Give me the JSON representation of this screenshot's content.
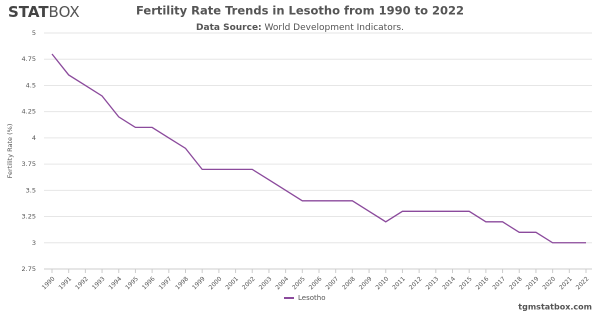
{
  "chart_data": {
    "type": "line",
    "brand_bold": "STAT",
    "brand_light": "BOX",
    "title": "Fertility Rate Trends in Lesotho from 1990 to 2022",
    "source_label": "Data Source:",
    "source": "World Development Indicators.",
    "ylabel": "Fertility Rate (%)",
    "footer": "tgmstatbox.com",
    "x": [
      1990,
      1991,
      1992,
      1993,
      1994,
      1995,
      1996,
      1997,
      1998,
      1999,
      2000,
      2001,
      2002,
      2003,
      2004,
      2005,
      2006,
      2007,
      2008,
      2009,
      2010,
      2011,
      2012,
      2013,
      2014,
      2015,
      2016,
      2017,
      2018,
      2019,
      2020,
      2021,
      2022
    ],
    "xlim": [
      1990,
      2022
    ],
    "xticks": [
      1990,
      1991,
      1992,
      1993,
      1994,
      1995,
      1996,
      1997,
      1998,
      1999,
      2000,
      2001,
      2002,
      2003,
      2004,
      2005,
      2006,
      2007,
      2008,
      2009,
      2010,
      2011,
      2012,
      2013,
      2014,
      2015,
      2016,
      2017,
      2018,
      2019,
      2020,
      2021,
      2022
    ],
    "series": [
      {
        "name": "Lesotho",
        "color": "#8b4a9c",
        "values": [
          4.8,
          4.6,
          4.5,
          4.4,
          4.2,
          4.1,
          4.1,
          4.0,
          3.9,
          3.7,
          3.7,
          3.7,
          3.7,
          3.6,
          3.5,
          3.4,
          3.4,
          3.4,
          3.4,
          3.3,
          3.2,
          3.3,
          3.3,
          3.3,
          3.3,
          3.3,
          3.2,
          3.2,
          3.1,
          3.1,
          3.0,
          3.0,
          3.0
        ]
      }
    ],
    "ylim": [
      2.75,
      5
    ],
    "yticks": [
      2.75,
      3,
      3.25,
      3.5,
      3.75,
      4,
      4.25,
      4.5,
      4.75,
      5
    ],
    "grid": true
  }
}
